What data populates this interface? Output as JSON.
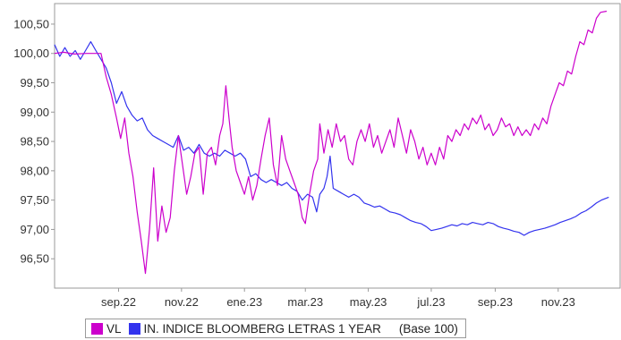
{
  "chart_data": {
    "type": "line",
    "ylim": [
      96.0,
      100.85
    ],
    "yticks": [
      96.5,
      97.0,
      97.5,
      98.0,
      98.5,
      99.0,
      99.5,
      100.0,
      100.5
    ],
    "ytick_labels": [
      "96,50",
      "97,00",
      "97,50",
      "98,00",
      "98,50",
      "99,00",
      "99,50",
      "100,00",
      "100,50"
    ],
    "xlim": [
      "2022-07-01",
      "2023-12-31"
    ],
    "xticks": [
      "2022-09-01",
      "2022-11-01",
      "2023-01-01",
      "2023-03-01",
      "2023-05-01",
      "2023-07-01",
      "2023-09-01",
      "2023-11-01"
    ],
    "xtick_labels": [
      "sep.22",
      "nov.22",
      "ene.23",
      "mar.23",
      "may.23",
      "jul.23",
      "sep.23",
      "nov.23"
    ],
    "grid": false,
    "legend_position": "bottom",
    "legend_note": "(Base 100)",
    "series": [
      {
        "name": "VL",
        "color": "#cc00cc",
        "points": [
          [
            "2022-07-01",
            100.0
          ],
          [
            "2022-07-10",
            100.02
          ],
          [
            "2022-07-20",
            99.99
          ],
          [
            "2022-08-01",
            100.0
          ],
          [
            "2022-08-15",
            100.0
          ],
          [
            "2022-08-20",
            99.6
          ],
          [
            "2022-08-25",
            99.3
          ],
          [
            "2022-08-30",
            98.9
          ],
          [
            "2022-09-03",
            98.55
          ],
          [
            "2022-09-07",
            98.9
          ],
          [
            "2022-09-11",
            98.3
          ],
          [
            "2022-09-15",
            97.9
          ],
          [
            "2022-09-19",
            97.3
          ],
          [
            "2022-09-23",
            96.8
          ],
          [
            "2022-09-27",
            96.25
          ],
          [
            "2022-10-01",
            97.0
          ],
          [
            "2022-10-05",
            98.05
          ],
          [
            "2022-10-09",
            96.8
          ],
          [
            "2022-10-13",
            97.4
          ],
          [
            "2022-10-17",
            96.95
          ],
          [
            "2022-10-21",
            97.2
          ],
          [
            "2022-10-25",
            98.0
          ],
          [
            "2022-10-29",
            98.6
          ],
          [
            "2022-11-02",
            98.1
          ],
          [
            "2022-11-06",
            97.6
          ],
          [
            "2022-11-10",
            97.9
          ],
          [
            "2022-11-14",
            98.3
          ],
          [
            "2022-11-18",
            98.4
          ],
          [
            "2022-11-22",
            97.6
          ],
          [
            "2022-11-26",
            98.3
          ],
          [
            "2022-11-30",
            98.4
          ],
          [
            "2022-12-04",
            98.1
          ],
          [
            "2022-12-08",
            98.6
          ],
          [
            "2022-12-11",
            98.8
          ],
          [
            "2022-12-14",
            99.45
          ],
          [
            "2022-12-17",
            98.9
          ],
          [
            "2022-12-20",
            98.4
          ],
          [
            "2022-12-24",
            98.0
          ],
          [
            "2022-12-28",
            97.8
          ],
          [
            "2023-01-01",
            97.6
          ],
          [
            "2023-01-05",
            97.9
          ],
          [
            "2023-01-09",
            97.5
          ],
          [
            "2023-01-13",
            97.75
          ],
          [
            "2023-01-17",
            98.2
          ],
          [
            "2023-01-21",
            98.6
          ],
          [
            "2023-01-25",
            98.9
          ],
          [
            "2023-01-29",
            98.1
          ],
          [
            "2023-02-02",
            97.75
          ],
          [
            "2023-02-06",
            98.6
          ],
          [
            "2023-02-10",
            98.2
          ],
          [
            "2023-02-14",
            98.0
          ],
          [
            "2023-02-18",
            97.8
          ],
          [
            "2023-02-22",
            97.6
          ],
          [
            "2023-02-26",
            97.2
          ],
          [
            "2023-03-01",
            97.1
          ],
          [
            "2023-03-05",
            97.6
          ],
          [
            "2023-03-09",
            98.0
          ],
          [
            "2023-03-13",
            98.2
          ],
          [
            "2023-03-15",
            98.8
          ],
          [
            "2023-03-19",
            98.3
          ],
          [
            "2023-03-23",
            98.7
          ],
          [
            "2023-03-27",
            98.4
          ],
          [
            "2023-03-31",
            98.8
          ],
          [
            "2023-04-04",
            98.5
          ],
          [
            "2023-04-08",
            98.6
          ],
          [
            "2023-04-12",
            98.2
          ],
          [
            "2023-04-16",
            98.1
          ],
          [
            "2023-04-20",
            98.5
          ],
          [
            "2023-04-24",
            98.7
          ],
          [
            "2023-04-28",
            98.5
          ],
          [
            "2023-05-02",
            98.8
          ],
          [
            "2023-05-06",
            98.4
          ],
          [
            "2023-05-10",
            98.6
          ],
          [
            "2023-05-14",
            98.3
          ],
          [
            "2023-05-18",
            98.5
          ],
          [
            "2023-05-22",
            98.7
          ],
          [
            "2023-05-26",
            98.4
          ],
          [
            "2023-05-30",
            98.9
          ],
          [
            "2023-06-03",
            98.6
          ],
          [
            "2023-06-07",
            98.3
          ],
          [
            "2023-06-11",
            98.7
          ],
          [
            "2023-06-15",
            98.5
          ],
          [
            "2023-06-19",
            98.2
          ],
          [
            "2023-06-23",
            98.4
          ],
          [
            "2023-06-27",
            98.1
          ],
          [
            "2023-07-01",
            98.3
          ],
          [
            "2023-07-05",
            98.1
          ],
          [
            "2023-07-09",
            98.4
          ],
          [
            "2023-07-13",
            98.2
          ],
          [
            "2023-07-17",
            98.6
          ],
          [
            "2023-07-21",
            98.5
          ],
          [
            "2023-07-25",
            98.7
          ],
          [
            "2023-07-29",
            98.6
          ],
          [
            "2023-08-02",
            98.8
          ],
          [
            "2023-08-06",
            98.7
          ],
          [
            "2023-08-10",
            98.9
          ],
          [
            "2023-08-14",
            98.8
          ],
          [
            "2023-08-18",
            98.95
          ],
          [
            "2023-08-22",
            98.7
          ],
          [
            "2023-08-26",
            98.8
          ],
          [
            "2023-08-30",
            98.6
          ],
          [
            "2023-09-03",
            98.7
          ],
          [
            "2023-09-07",
            98.9
          ],
          [
            "2023-09-11",
            98.75
          ],
          [
            "2023-09-15",
            98.8
          ],
          [
            "2023-09-19",
            98.6
          ],
          [
            "2023-09-23",
            98.75
          ],
          [
            "2023-09-27",
            98.6
          ],
          [
            "2023-10-01",
            98.7
          ],
          [
            "2023-10-05",
            98.6
          ],
          [
            "2023-10-09",
            98.8
          ],
          [
            "2023-10-13",
            98.7
          ],
          [
            "2023-10-17",
            98.9
          ],
          [
            "2023-10-21",
            98.8
          ],
          [
            "2023-10-25",
            99.1
          ],
          [
            "2023-10-29",
            99.3
          ],
          [
            "2023-11-02",
            99.5
          ],
          [
            "2023-11-06",
            99.45
          ],
          [
            "2023-11-10",
            99.7
          ],
          [
            "2023-11-14",
            99.65
          ],
          [
            "2023-11-18",
            99.95
          ],
          [
            "2023-11-22",
            100.2
          ],
          [
            "2023-11-26",
            100.15
          ],
          [
            "2023-11-30",
            100.4
          ],
          [
            "2023-12-04",
            100.35
          ],
          [
            "2023-12-08",
            100.6
          ],
          [
            "2023-12-12",
            100.7
          ],
          [
            "2023-12-18",
            100.72
          ]
        ]
      },
      {
        "name": "IN. INDICE BLOOMBERG LETRAS 1 YEAR",
        "color": "#3333ee",
        "points": [
          [
            "2022-07-01",
            100.15
          ],
          [
            "2022-07-06",
            99.95
          ],
          [
            "2022-07-11",
            100.1
          ],
          [
            "2022-07-16",
            99.95
          ],
          [
            "2022-07-21",
            100.05
          ],
          [
            "2022-07-26",
            99.9
          ],
          [
            "2022-07-31",
            100.05
          ],
          [
            "2022-08-05",
            100.2
          ],
          [
            "2022-08-10",
            100.05
          ],
          [
            "2022-08-15",
            99.9
          ],
          [
            "2022-08-20",
            99.75
          ],
          [
            "2022-08-25",
            99.5
          ],
          [
            "2022-08-30",
            99.15
          ],
          [
            "2022-09-04",
            99.35
          ],
          [
            "2022-09-09",
            99.1
          ],
          [
            "2022-09-14",
            98.95
          ],
          [
            "2022-09-19",
            98.85
          ],
          [
            "2022-09-24",
            98.9
          ],
          [
            "2022-09-29",
            98.7
          ],
          [
            "2022-10-04",
            98.6
          ],
          [
            "2022-10-09",
            98.55
          ],
          [
            "2022-10-14",
            98.5
          ],
          [
            "2022-10-19",
            98.45
          ],
          [
            "2022-10-24",
            98.4
          ],
          [
            "2022-10-29",
            98.6
          ],
          [
            "2022-11-03",
            98.35
          ],
          [
            "2022-11-08",
            98.4
          ],
          [
            "2022-11-13",
            98.3
          ],
          [
            "2022-11-18",
            98.45
          ],
          [
            "2022-11-23",
            98.3
          ],
          [
            "2022-11-28",
            98.25
          ],
          [
            "2022-12-03",
            98.3
          ],
          [
            "2022-12-08",
            98.25
          ],
          [
            "2022-12-13",
            98.35
          ],
          [
            "2022-12-18",
            98.3
          ],
          [
            "2022-12-23",
            98.25
          ],
          [
            "2022-12-28",
            98.3
          ],
          [
            "2023-01-02",
            98.2
          ],
          [
            "2023-01-07",
            97.9
          ],
          [
            "2023-01-12",
            97.95
          ],
          [
            "2023-01-17",
            97.85
          ],
          [
            "2023-01-22",
            97.8
          ],
          [
            "2023-01-27",
            97.85
          ],
          [
            "2023-02-01",
            97.8
          ],
          [
            "2023-02-06",
            97.75
          ],
          [
            "2023-02-11",
            97.8
          ],
          [
            "2023-02-16",
            97.7
          ],
          [
            "2023-02-21",
            97.65
          ],
          [
            "2023-02-26",
            97.5
          ],
          [
            "2023-03-03",
            97.6
          ],
          [
            "2023-03-08",
            97.55
          ],
          [
            "2023-03-12",
            97.3
          ],
          [
            "2023-03-15",
            97.6
          ],
          [
            "2023-03-19",
            97.7
          ],
          [
            "2023-03-22",
            97.9
          ],
          [
            "2023-03-25",
            98.25
          ],
          [
            "2023-03-28",
            97.7
          ],
          [
            "2023-04-02",
            97.65
          ],
          [
            "2023-04-07",
            97.6
          ],
          [
            "2023-04-12",
            97.55
          ],
          [
            "2023-04-17",
            97.6
          ],
          [
            "2023-04-22",
            97.55
          ],
          [
            "2023-04-27",
            97.45
          ],
          [
            "2023-05-02",
            97.42
          ],
          [
            "2023-05-07",
            97.38
          ],
          [
            "2023-05-12",
            97.4
          ],
          [
            "2023-05-17",
            97.35
          ],
          [
            "2023-05-22",
            97.3
          ],
          [
            "2023-05-27",
            97.28
          ],
          [
            "2023-06-01",
            97.25
          ],
          [
            "2023-06-06",
            97.2
          ],
          [
            "2023-06-11",
            97.15
          ],
          [
            "2023-06-16",
            97.12
          ],
          [
            "2023-06-21",
            97.1
          ],
          [
            "2023-06-26",
            97.05
          ],
          [
            "2023-07-01",
            96.98
          ],
          [
            "2023-07-06",
            97.0
          ],
          [
            "2023-07-11",
            97.02
          ],
          [
            "2023-07-16",
            97.05
          ],
          [
            "2023-07-21",
            97.08
          ],
          [
            "2023-07-26",
            97.06
          ],
          [
            "2023-07-31",
            97.1
          ],
          [
            "2023-08-05",
            97.08
          ],
          [
            "2023-08-10",
            97.12
          ],
          [
            "2023-08-15",
            97.1
          ],
          [
            "2023-08-20",
            97.08
          ],
          [
            "2023-08-25",
            97.12
          ],
          [
            "2023-08-30",
            97.1
          ],
          [
            "2023-09-04",
            97.05
          ],
          [
            "2023-09-09",
            97.02
          ],
          [
            "2023-09-14",
            97.0
          ],
          [
            "2023-09-19",
            96.97
          ],
          [
            "2023-09-24",
            96.95
          ],
          [
            "2023-09-29",
            96.9
          ],
          [
            "2023-10-04",
            96.95
          ],
          [
            "2023-10-09",
            96.98
          ],
          [
            "2023-10-14",
            97.0
          ],
          [
            "2023-10-19",
            97.02
          ],
          [
            "2023-10-24",
            97.05
          ],
          [
            "2023-10-29",
            97.08
          ],
          [
            "2023-11-03",
            97.12
          ],
          [
            "2023-11-08",
            97.15
          ],
          [
            "2023-11-13",
            97.18
          ],
          [
            "2023-11-18",
            97.22
          ],
          [
            "2023-11-23",
            97.28
          ],
          [
            "2023-11-28",
            97.32
          ],
          [
            "2023-12-03",
            97.38
          ],
          [
            "2023-12-08",
            97.45
          ],
          [
            "2023-12-13",
            97.5
          ],
          [
            "2023-12-20",
            97.55
          ]
        ]
      }
    ]
  }
}
